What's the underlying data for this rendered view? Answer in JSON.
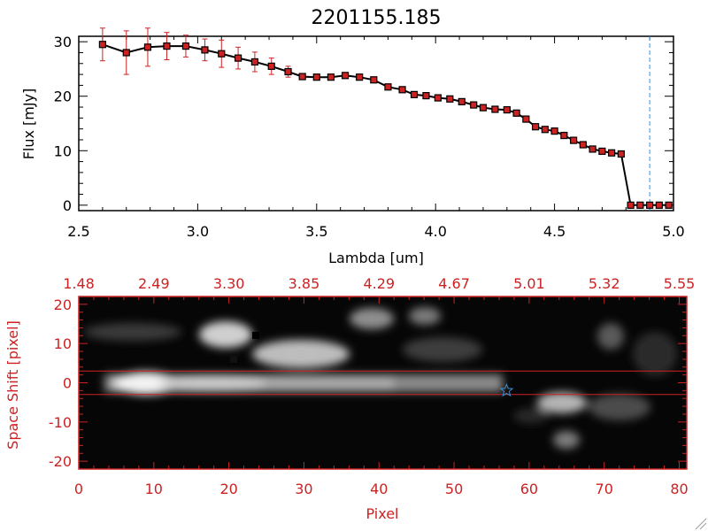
{
  "chart_data": [
    {
      "type": "line",
      "title": "2201155.185",
      "xlabel": "Lambda [um]",
      "ylabel": "Flux [mJy]",
      "xlim": [
        2.5,
        5.0
      ],
      "ylim": [
        -1,
        31
      ],
      "x_ticks": [
        "2.5",
        "3.0",
        "3.5",
        "4.0",
        "4.5",
        "5.0"
      ],
      "y_ticks": [
        "0",
        "10",
        "20",
        "30"
      ],
      "grid": false,
      "line_color": "#000000",
      "marker_color": "#cc2222",
      "errorbar_color": "#cc2222",
      "vline_x": 4.9,
      "vline_color": "#3a8fd9",
      "series": [
        {
          "x": [
            2.6,
            2.7,
            2.79,
            2.87,
            2.95,
            3.03,
            3.1,
            3.17,
            3.24,
            3.31,
            3.38,
            3.44,
            3.5,
            3.56,
            3.62,
            3.68,
            3.74,
            3.8,
            3.86,
            3.91,
            3.96,
            4.01,
            4.06,
            4.11,
            4.16,
            4.2,
            4.25,
            4.3,
            4.34,
            4.38,
            4.42,
            4.46,
            4.5,
            4.54,
            4.58,
            4.62,
            4.66,
            4.7,
            4.74,
            4.78,
            4.82,
            4.86,
            4.9,
            4.94,
            4.98
          ],
          "y": [
            29.5,
            28.0,
            29.0,
            29.2,
            29.2,
            28.5,
            27.8,
            27.0,
            26.3,
            25.5,
            24.5,
            23.6,
            23.5,
            23.5,
            23.8,
            23.5,
            23.0,
            21.7,
            21.2,
            20.3,
            20.1,
            19.7,
            19.5,
            19.0,
            18.4,
            17.9,
            17.6,
            17.5,
            16.9,
            15.8,
            14.4,
            13.9,
            13.6,
            12.8,
            11.9,
            11.1,
            10.3,
            9.9,
            9.6,
            9.4,
            0.0,
            0.0,
            0.0,
            0.0,
            0.0
          ],
          "err": [
            3.0,
            4.0,
            3.5,
            2.5,
            2.0,
            2.0,
            2.5,
            2.0,
            1.8,
            1.5,
            1.0,
            0.5,
            0.5,
            0.5,
            0.5,
            0.5,
            0.5,
            0.5,
            0.5,
            0.5,
            0.5,
            0.5,
            0.5,
            0.5,
            0.5,
            0.5,
            0.5,
            0.5,
            0.5,
            0.5,
            0.5,
            0.5,
            0.5,
            0.5,
            0.5,
            0.5,
            0.5,
            0.5,
            0.5,
            0.5,
            0.5,
            0.5,
            0.5,
            0.5,
            0.5
          ]
        }
      ]
    },
    {
      "type": "heatmap",
      "xlabel": "Pixel",
      "ylabel": "Space Shift [pixel]",
      "xlim": [
        0,
        81
      ],
      "ylim": [
        -22,
        22
      ],
      "x_ticks": [
        "0",
        "10",
        "20",
        "30",
        "40",
        "50",
        "60",
        "70",
        "80"
      ],
      "y_ticks": [
        "-20",
        "-10",
        "0",
        "10",
        "20"
      ],
      "top_ticks": [
        "1.48",
        "2.49",
        "3.30",
        "3.85",
        "4.29",
        "4.67",
        "5.01",
        "5.32",
        "5.55"
      ],
      "axis_color": "#cc2222",
      "hlines": [
        3,
        -3
      ],
      "hline_color": "#cc2222",
      "star": {
        "x": 57,
        "y": -2,
        "color": "#3a8fd9"
      },
      "grid": false
    }
  ]
}
